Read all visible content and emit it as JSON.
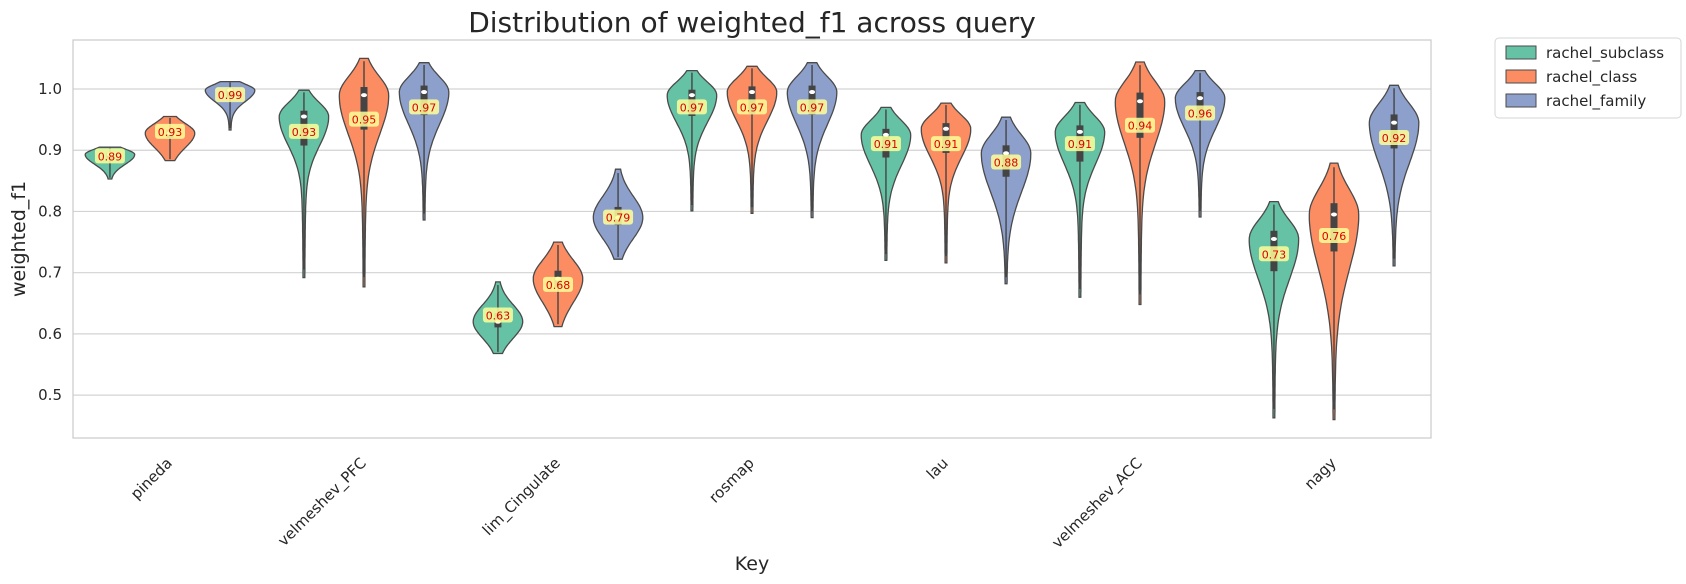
{
  "chart_data": {
    "type": "violin",
    "title": "Distribution of weighted_f1 across query",
    "xlabel": "Key",
    "ylabel": "weighted_f1",
    "ylim": [
      0.43,
      1.08
    ],
    "yticks": [
      0.5,
      0.6,
      0.7,
      0.8,
      0.9,
      1.0
    ],
    "ytick_labels": [
      "0.5",
      "0.6",
      "0.7",
      "0.8",
      "0.9",
      "1.0"
    ],
    "grid": "horizontal",
    "legend_position": "outside-top-right",
    "categories": [
      "pineda",
      "velmeshev_PFC",
      "lim_Cingulate",
      "rosmap",
      "lau",
      "velmeshev_ACC",
      "nagy"
    ],
    "series": [
      {
        "name": "rachel_subclass",
        "color": "#66c2a5",
        "medians": [
          0.89,
          0.93,
          0.63,
          0.97,
          0.91,
          0.91,
          0.73
        ],
        "centers": [
          0.893,
          0.955,
          0.62,
          0.99,
          0.925,
          0.93,
          0.755
        ],
        "mins": [
          0.853,
          0.692,
          0.568,
          0.801,
          0.72,
          0.66,
          0.463
        ],
        "maxs": [
          0.905,
          0.998,
          0.685,
          1.03,
          0.97,
          0.978,
          0.816
        ]
      },
      {
        "name": "rachel_class",
        "color": "#fc8d62",
        "medians": [
          0.93,
          0.95,
          0.68,
          0.97,
          0.91,
          0.94,
          0.76
        ],
        "centers": [
          0.928,
          0.99,
          0.69,
          0.995,
          0.935,
          0.98,
          0.795
        ],
        "mins": [
          0.883,
          0.677,
          0.612,
          0.797,
          0.716,
          0.648,
          0.46
        ],
        "maxs": [
          0.955,
          1.05,
          0.75,
          1.037,
          0.977,
          1.044,
          0.879
        ]
      },
      {
        "name": "rachel_family",
        "color": "#8da0cb",
        "medians": [
          0.99,
          0.97,
          0.79,
          0.97,
          0.88,
          0.96,
          0.92
        ],
        "centers": [
          0.998,
          0.995,
          0.79,
          0.995,
          0.895,
          0.985,
          0.945
        ],
        "mins": [
          0.933,
          0.786,
          0.722,
          0.79,
          0.682,
          0.791,
          0.711
        ],
        "maxs": [
          1.012,
          1.043,
          0.869,
          1.043,
          0.954,
          1.03,
          1.006
        ]
      }
    ],
    "annotation_labels": [
      [
        "0.89",
        "0.93",
        "0.99"
      ],
      [
        "0.93",
        "0.95",
        "0.97"
      ],
      [
        "0.63",
        "0.68",
        "0.79"
      ],
      [
        "0.97",
        "0.97",
        "0.97"
      ],
      [
        "0.91",
        "0.91",
        "0.88"
      ],
      [
        "0.91",
        "0.94",
        "0.96"
      ],
      [
        "0.73",
        "0.76",
        "0.92"
      ]
    ],
    "annotation_style": {
      "background": "#ffff99",
      "text_color": "#e00000"
    }
  }
}
